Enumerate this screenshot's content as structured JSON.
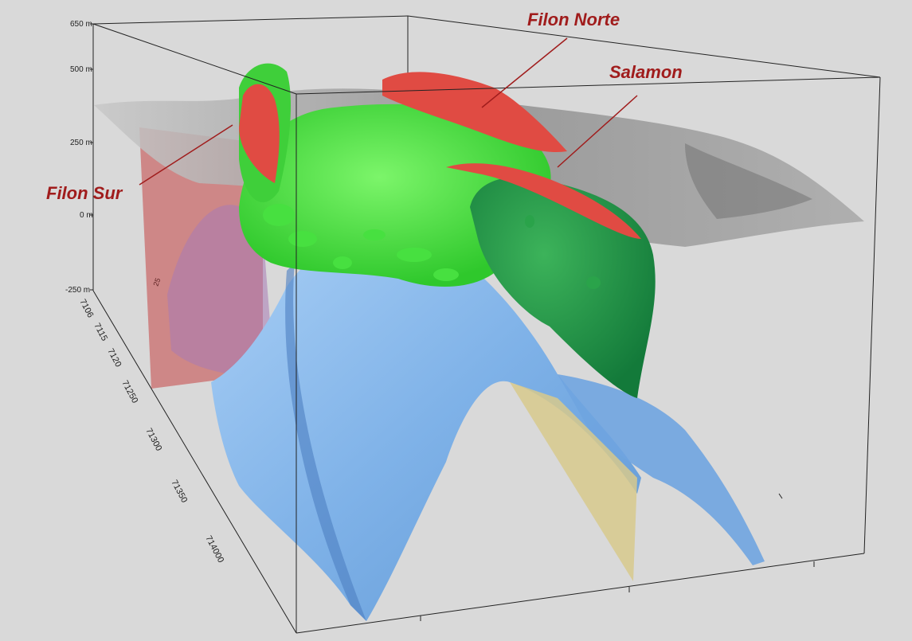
{
  "z_axis": {
    "tick_labels": [
      "650 m",
      "500 m",
      "250 m",
      "0 m",
      "-250 m"
    ]
  },
  "y_axis": {
    "tick_labels": [
      "7106",
      "7115",
      "7120",
      "71250",
      "71300",
      "71350",
      "714000"
    ]
  },
  "callouts": {
    "filon_norte": "Filon Norte",
    "salamon": "Salamon",
    "filon_sur": "Filon Sur"
  },
  "section_label": "25",
  "colors": {
    "background": "#d9d9d9",
    "callout": "#a01c1c",
    "topography": "#9a9a9a",
    "fold_surface": "#7fb2e8",
    "green_body_light": "#45e63d",
    "green_body_dark": "#1f9a46",
    "red_vein": "#e04b43",
    "red_plane": "#c96b6b",
    "yellow_plane": "#d7c98c",
    "bounding_box": "#222222"
  }
}
